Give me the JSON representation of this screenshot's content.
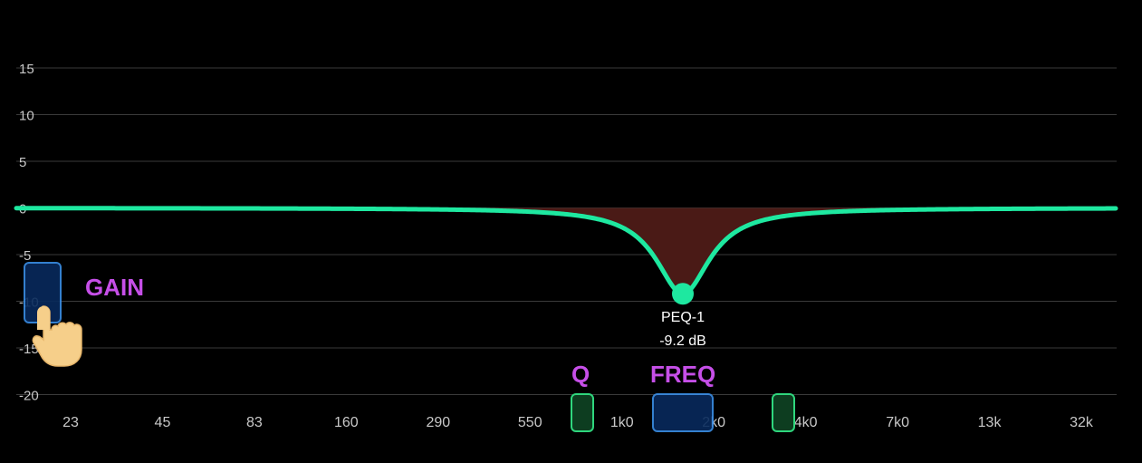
{
  "y_axis": {
    "ticks": [
      "15",
      "10",
      "5",
      "0",
      "-5",
      "-10",
      "-15",
      "-20"
    ]
  },
  "x_axis": {
    "ticks": [
      "23",
      "45",
      "83",
      "160",
      "290",
      "550",
      "1k0",
      "2k0",
      "4k0",
      "7k0",
      "13k",
      "32k"
    ]
  },
  "eq_point": {
    "name": "PEQ-1",
    "gain_label": "-9.2 dB",
    "gain_db": -9.2
  },
  "callouts": {
    "gain": "GAIN",
    "q": "Q",
    "freq": "FREQ"
  },
  "colors": {
    "curve": "#1ee8a0",
    "fill": "#4a1a16",
    "callout": "#c64fe8",
    "grid": "#3a3a3a"
  },
  "icons": {
    "pointer": "hand-pointer-icon"
  }
}
